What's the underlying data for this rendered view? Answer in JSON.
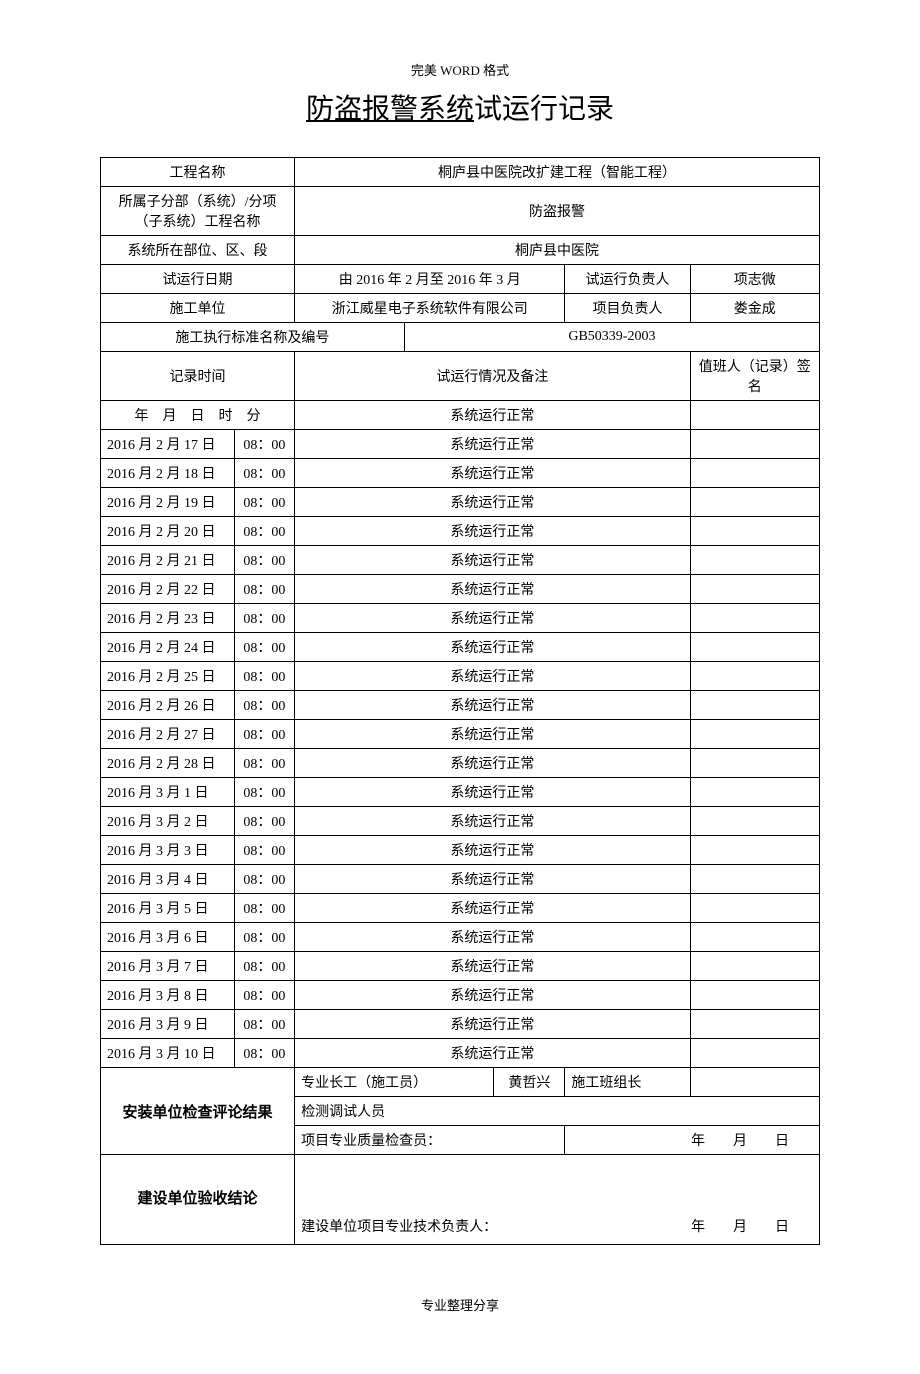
{
  "header_note": "完美 WORD 格式",
  "title_underline": "防盗报警系统",
  "title_rest": "试运行记录",
  "labels": {
    "project_name": "工程名称",
    "subsystem": "所属子分部（系统）/分项（子系统）工程名称",
    "location": "系统所在部位、区、段",
    "trial_date": "试运行日期",
    "construction_unit": "施工单位",
    "standard": "施工执行标准名称及编号",
    "record_time": "记录时间",
    "trial_status": "试运行情况及备注",
    "duty_sign": "值班人（记录）签名",
    "trial_leader": "试运行负责人",
    "project_leader": "项目负责人",
    "install_result": "安装单位检查评论结果",
    "pro_worker": "专业长工（施工员）",
    "team_leader": "施工班组长",
    "inspector": "检测调试人员",
    "quality_checker": "项目专业质量检查员：",
    "build_accept": "建设单位验收结论",
    "build_tech_leader": "建设单位项目专业技术负责人：",
    "date_ymd": "年　　月　　日",
    "date_header": "年　月　日　时　分"
  },
  "values": {
    "project_name": "桐庐县中医院改扩建工程（智能工程）",
    "subsystem": "防盗报警",
    "location": "桐庐县中医院",
    "trial_date": "由 2016 年 2 月至 2016 年 3 月",
    "construction_unit": "浙江威星电子系统软件有限公司",
    "standard": "GB50339-2003",
    "trial_leader": "项志微",
    "project_leader": "娄金成",
    "pro_worker_name": "黄哲兴",
    "normal": "系统运行正常"
  },
  "rows": [
    {
      "date": "2016 月 2 月 17 日",
      "time": "08：00"
    },
    {
      "date": "2016 月 2 月 18 日",
      "time": "08：00"
    },
    {
      "date": "2016 月 2 月 19 日",
      "time": "08：00"
    },
    {
      "date": "2016 月 2 月 20 日",
      "time": "08：00"
    },
    {
      "date": "2016 月 2 月 21 日",
      "time": "08：00"
    },
    {
      "date": "2016 月 2 月 22 日",
      "time": "08：00"
    },
    {
      "date": "2016 月 2 月 23 日",
      "time": "08：00"
    },
    {
      "date": "2016 月 2 月 24 日",
      "time": "08：00"
    },
    {
      "date": "2016 月 2 月 25 日",
      "time": "08：00"
    },
    {
      "date": "2016 月 2 月 26 日",
      "time": "08：00"
    },
    {
      "date": "2016 月 2 月 27 日",
      "time": "08：00"
    },
    {
      "date": "2016 月 2 月 28 日",
      "time": "08：00"
    },
    {
      "date": "2016 月 3 月 1 日",
      "time": "08：00"
    },
    {
      "date": "2016 月 3 月 2 日",
      "time": "08：00"
    },
    {
      "date": "2016 月 3 月 3 日",
      "time": "08：00"
    },
    {
      "date": "2016 月 3 月 4 日",
      "time": "08：00"
    },
    {
      "date": "2016 月 3 月 5 日",
      "time": "08：00"
    },
    {
      "date": "2016 月 3 月 6 日",
      "time": "08：00"
    },
    {
      "date": "2016 月 3 月 7 日",
      "time": "08：00"
    },
    {
      "date": "2016 月 3 月 8 日",
      "time": "08：00"
    },
    {
      "date": "2016 月 3 月 9 日",
      "time": "08：00"
    },
    {
      "date": "2016 月 3 月 10 日",
      "time": "08：00"
    }
  ],
  "footer_note": "专业整理分享"
}
